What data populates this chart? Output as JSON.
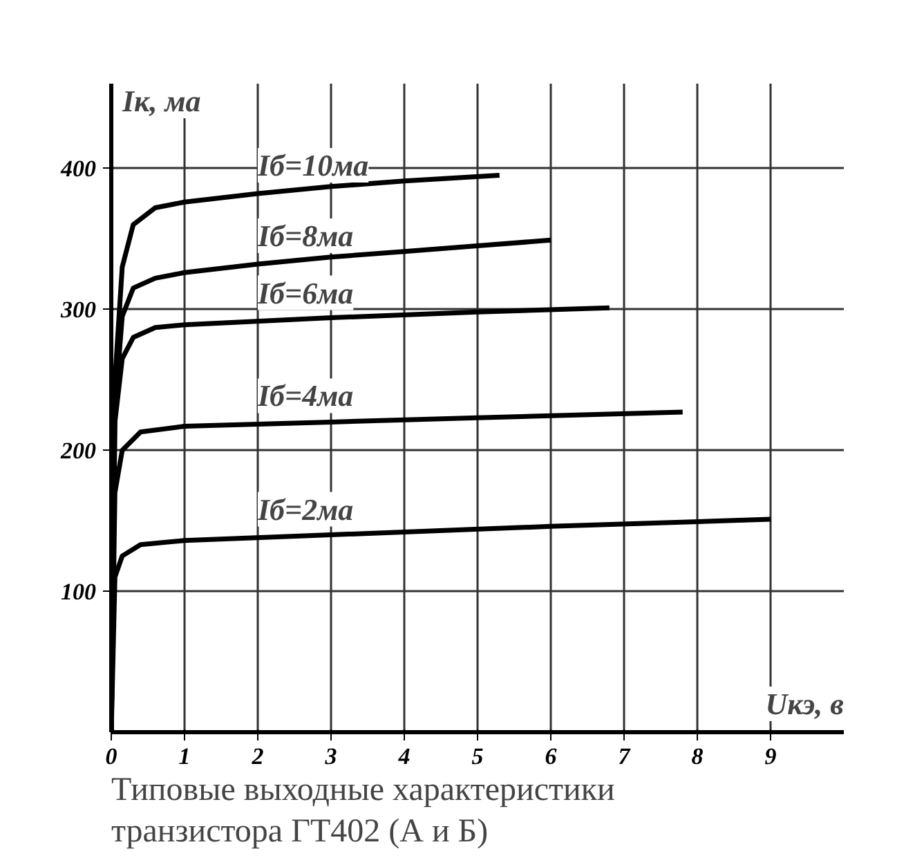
{
  "chart_data": {
    "type": "line",
    "xlabel": "Uкэ, в",
    "ylabel": "Iк, ма",
    "xlim": [
      0,
      10
    ],
    "ylim": [
      0,
      460
    ],
    "xticks": [
      0,
      1,
      2,
      3,
      4,
      5,
      6,
      7,
      8,
      9
    ],
    "yticks": [
      100,
      200,
      300,
      400
    ],
    "grid": true,
    "marker": "none",
    "line_style": "solid",
    "series": [
      {
        "name": "Iб=10ма",
        "color": "#000000",
        "x": [
          0,
          0.05,
          0.15,
          0.3,
          0.6,
          1,
          2,
          3,
          4,
          5.3
        ],
        "values": [
          0,
          250,
          330,
          360,
          372,
          376,
          382,
          387,
          391,
          395
        ]
      },
      {
        "name": "Iб=8ма",
        "color": "#000000",
        "x": [
          0,
          0.05,
          0.15,
          0.3,
          0.6,
          1,
          2,
          3,
          4,
          5,
          6
        ],
        "values": [
          0,
          230,
          295,
          315,
          322,
          326,
          332,
          337,
          341,
          345,
          349
        ]
      },
      {
        "name": "Iб=6ма",
        "color": "#000000",
        "x": [
          0,
          0.05,
          0.15,
          0.3,
          0.6,
          1,
          3,
          5,
          6.8
        ],
        "values": [
          0,
          220,
          265,
          280,
          287,
          289,
          294,
          298,
          301
        ]
      },
      {
        "name": "Iб=4ма",
        "color": "#000000",
        "x": [
          0,
          0.05,
          0.15,
          0.4,
          1,
          3,
          5,
          7.8
        ],
        "values": [
          0,
          170,
          200,
          213,
          217,
          220,
          223,
          227
        ]
      },
      {
        "name": "Iб=2ма",
        "color": "#000000",
        "x": [
          0,
          0.05,
          0.15,
          0.4,
          1,
          3,
          6,
          9
        ],
        "values": [
          0,
          110,
          125,
          133,
          136,
          140,
          146,
          151
        ]
      }
    ],
    "annotations": [
      "Типовые выходные характеристики",
      "транзистора ГТ402 (А и Б)"
    ]
  }
}
